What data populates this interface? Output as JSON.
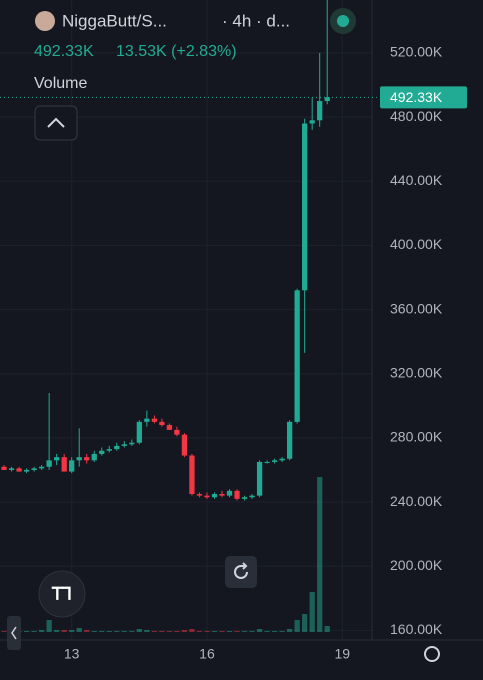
{
  "chart_data": {
    "type": "candlestick",
    "title": "NiggaButt/S...",
    "interval": "· 4h · d...",
    "price_text": "492.33K",
    "change_text": "13.53K (+2.83%)",
    "volume_label": "Volume",
    "last_price": {
      "value": 492.33,
      "label": "492.33K"
    },
    "up_color": "#22ab94",
    "down_color": "#f23645",
    "x": [
      11.5,
      11.6667,
      11.8333,
      12,
      12.1667,
      12.3333,
      12.5,
      12.6667,
      12.8333,
      13,
      13.1667,
      13.3333,
      13.5,
      13.6667,
      13.8333,
      14,
      14.1667,
      14.3333,
      14.5,
      14.6667,
      14.8333,
      15,
      15.1667,
      15.3333,
      15.5,
      15.6667,
      15.8333,
      16,
      16.1667,
      16.3333,
      16.5,
      16.6667,
      16.8333,
      17,
      17.1667,
      17.3333,
      17.5,
      17.6667,
      17.8333,
      18,
      18.1667,
      18.3333,
      18.5,
      18.6667
    ],
    "open": [
      262,
      260,
      261,
      259,
      260,
      261,
      262,
      266,
      268,
      259,
      266,
      268,
      266,
      270,
      272,
      273,
      275,
      276,
      277,
      290,
      292,
      290,
      288,
      285,
      282,
      269,
      245,
      244,
      243,
      245,
      244,
      247,
      242,
      243,
      244,
      265,
      265,
      266,
      267,
      290,
      372,
      476,
      478,
      490
    ],
    "high": [
      263,
      262,
      262,
      261,
      262,
      263,
      308,
      270,
      270,
      268,
      286,
      270,
      272,
      274,
      275,
      277,
      278,
      279,
      291,
      297,
      294,
      292,
      289,
      287,
      283,
      270,
      246,
      246,
      246,
      247,
      248,
      248,
      244,
      245,
      266,
      266,
      267,
      268,
      291,
      373,
      479,
      492,
      520,
      553
    ],
    "low": [
      260,
      259,
      259,
      258,
      259,
      260,
      260,
      263,
      259,
      258,
      262,
      264,
      265,
      269,
      271,
      272,
      274,
      275,
      276,
      287,
      289,
      287,
      285,
      281,
      268,
      244,
      243,
      242,
      242,
      243,
      243,
      241,
      241,
      242,
      243,
      264,
      264,
      265,
      266,
      289,
      333,
      472,
      474,
      488
    ],
    "close": [
      260,
      261,
      259,
      260,
      261,
      262,
      266,
      268,
      259,
      266,
      268,
      266,
      270,
      272,
      273,
      275,
      276,
      277,
      290,
      292,
      290,
      288,
      285,
      282,
      269,
      245,
      244,
      243,
      245,
      244,
      247,
      242,
      243,
      244,
      265,
      265,
      266,
      267,
      290,
      372,
      476,
      478,
      490,
      492.33
    ],
    "volume": [
      1,
      1,
      1,
      1,
      1,
      2,
      12,
      2,
      2,
      2,
      4,
      2,
      1,
      1,
      1,
      1,
      1,
      1,
      3,
      2,
      1,
      1,
      1,
      1,
      2,
      3,
      1,
      1,
      1,
      1,
      1,
      1,
      1,
      1,
      3,
      1,
      1,
      1,
      3,
      12,
      18,
      40,
      155,
      6
    ],
    "xlim": [
      11.41,
      19.66
    ],
    "ylim": [
      154,
      553
    ],
    "xticks": [
      13,
      16,
      19
    ],
    "yticks": [
      {
        "value": 160,
        "label": "160.00K"
      },
      {
        "value": 200,
        "label": "200.00K"
      },
      {
        "value": 240,
        "label": "240.00K"
      },
      {
        "value": 280,
        "label": "280.00K"
      },
      {
        "value": 320,
        "label": "320.00K"
      },
      {
        "value": 360,
        "label": "360.00K"
      },
      {
        "value": 400,
        "label": "400.00K"
      },
      {
        "value": 440,
        "label": "440.00K"
      },
      {
        "value": 480,
        "label": "480.00K"
      },
      {
        "value": 520,
        "label": "520.00K"
      }
    ],
    "grid": true
  }
}
